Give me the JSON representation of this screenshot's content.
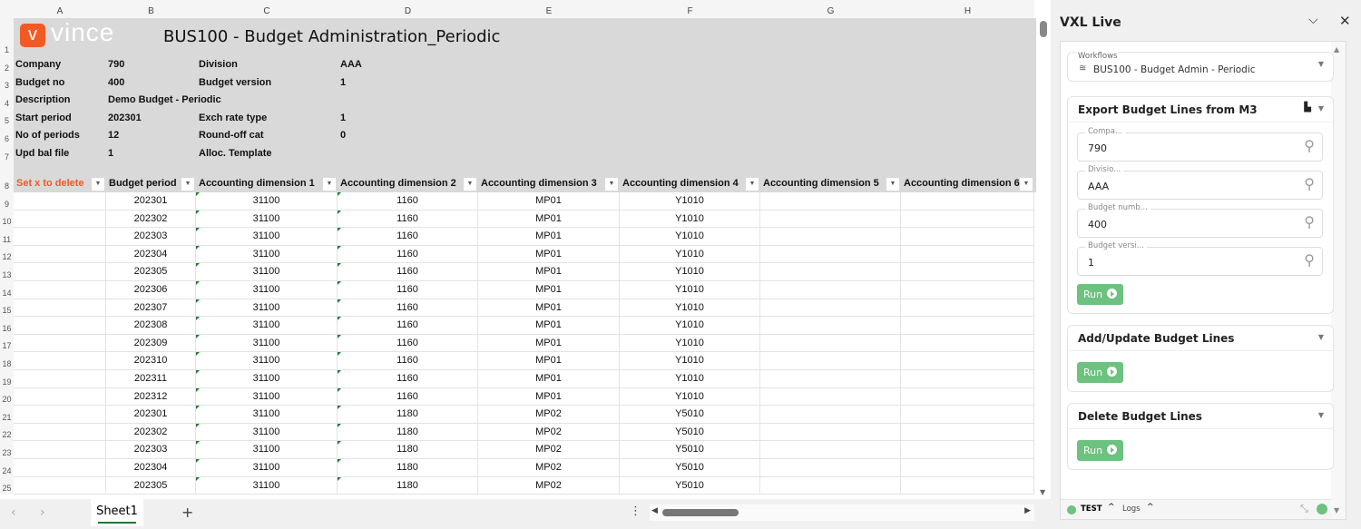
{
  "sheet": {
    "columns": [
      "A",
      "B",
      "C",
      "D",
      "E",
      "F",
      "G",
      "H"
    ],
    "logo_text": "vince",
    "title": "BUS100 - Budget Administration_Periodic",
    "info": [
      {
        "l1": "Company",
        "v1": "790",
        "l2": "Division",
        "v2": "AAA"
      },
      {
        "l1": "Budget no",
        "v1": "400",
        "l2": "Budget version",
        "v2": "1"
      },
      {
        "l1": "Description",
        "v1": "Demo Budget - Periodic",
        "l2": "",
        "v2": ""
      },
      {
        "l1": "Start period",
        "v1": "202301",
        "l2": "Exch rate type",
        "v2": "1"
      },
      {
        "l1": "No of periods",
        "v1": "12",
        "l2": "Round-off cat",
        "v2": "0"
      },
      {
        "l1": "Upd bal file",
        "v1": "1",
        "l2": "Alloc. Template",
        "v2": ""
      }
    ],
    "headers": [
      "Set x to delete",
      "Budget period",
      "Accounting dimension 1",
      "Accounting dimension 2",
      "Accounting dimension 3",
      "Accounting dimension 4",
      "Accounting dimension 5",
      "Accounting dimension 6"
    ],
    "delete_color": "#f15a24",
    "rows": [
      [
        "",
        "202301",
        "31100",
        "1160",
        "MP01",
        "Y1010",
        "",
        ""
      ],
      [
        "",
        "202302",
        "31100",
        "1160",
        "MP01",
        "Y1010",
        "",
        ""
      ],
      [
        "",
        "202303",
        "31100",
        "1160",
        "MP01",
        "Y1010",
        "",
        ""
      ],
      [
        "",
        "202304",
        "31100",
        "1160",
        "MP01",
        "Y1010",
        "",
        ""
      ],
      [
        "",
        "202305",
        "31100",
        "1160",
        "MP01",
        "Y1010",
        "",
        ""
      ],
      [
        "",
        "202306",
        "31100",
        "1160",
        "MP01",
        "Y1010",
        "",
        ""
      ],
      [
        "",
        "202307",
        "31100",
        "1160",
        "MP01",
        "Y1010",
        "",
        ""
      ],
      [
        "",
        "202308",
        "31100",
        "1160",
        "MP01",
        "Y1010",
        "",
        ""
      ],
      [
        "",
        "202309",
        "31100",
        "1160",
        "MP01",
        "Y1010",
        "",
        ""
      ],
      [
        "",
        "202310",
        "31100",
        "1160",
        "MP01",
        "Y1010",
        "",
        ""
      ],
      [
        "",
        "202311",
        "31100",
        "1160",
        "MP01",
        "Y1010",
        "",
        ""
      ],
      [
        "",
        "202312",
        "31100",
        "1160",
        "MP01",
        "Y1010",
        "",
        ""
      ],
      [
        "",
        "202301",
        "31100",
        "1180",
        "MP02",
        "Y5010",
        "",
        ""
      ],
      [
        "",
        "202302",
        "31100",
        "1180",
        "MP02",
        "Y5010",
        "",
        ""
      ],
      [
        "",
        "202303",
        "31100",
        "1180",
        "MP02",
        "Y5010",
        "",
        ""
      ],
      [
        "",
        "202304",
        "31100",
        "1180",
        "MP02",
        "Y5010",
        "",
        ""
      ],
      [
        "",
        "202305",
        "31100",
        "1180",
        "MP02",
        "Y5010",
        "",
        ""
      ]
    ],
    "tab": "Sheet1",
    "add_tab": "+"
  },
  "panel": {
    "title": "VXL Live",
    "workflows_label": "Workflows",
    "workflow": "BUS100 - Budget Admin - Periodic",
    "export": {
      "title": "Export Budget Lines from M3",
      "fields": [
        {
          "label": "Compa...",
          "value": "790"
        },
        {
          "label": "Divisio...",
          "value": "AAA"
        },
        {
          "label": "Budget numb...",
          "value": "400"
        },
        {
          "label": "Budget versi...",
          "value": "1"
        }
      ]
    },
    "add_update_title": "Add/Update Budget Lines",
    "delete_title": "Delete Budget Lines",
    "run_label": "Run",
    "env": "TEST",
    "logs": "Logs",
    "accent": "#6cc27e"
  }
}
